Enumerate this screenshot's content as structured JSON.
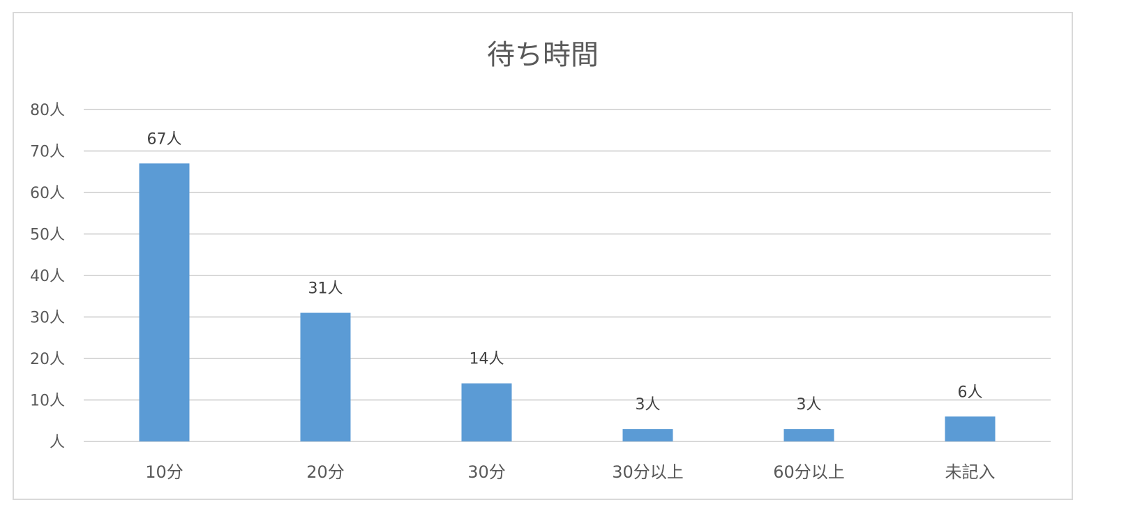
{
  "chart_data": {
    "type": "bar",
    "title": "待ち時間",
    "categories": [
      "10分",
      "20分",
      "30分",
      "30分以上",
      "60分以上",
      "未記入"
    ],
    "values": [
      67,
      31,
      14,
      3,
      3,
      6
    ],
    "data_labels": [
      "67人",
      "31人",
      "14人",
      "3人",
      "3人",
      "6人"
    ],
    "ylim": [
      0,
      80
    ],
    "y_ticks": [
      0,
      10,
      20,
      30,
      40,
      50,
      60,
      70,
      80
    ],
    "y_tick_labels": [
      "人",
      "10人",
      "20人",
      "30人",
      "40人",
      "50人",
      "60人",
      "70人",
      "80人"
    ],
    "grid": true,
    "legend": "none",
    "colors": {
      "bar": "#5b9bd5",
      "grid": "#d9d9d9",
      "text": "#595959",
      "label": "#404040"
    }
  }
}
